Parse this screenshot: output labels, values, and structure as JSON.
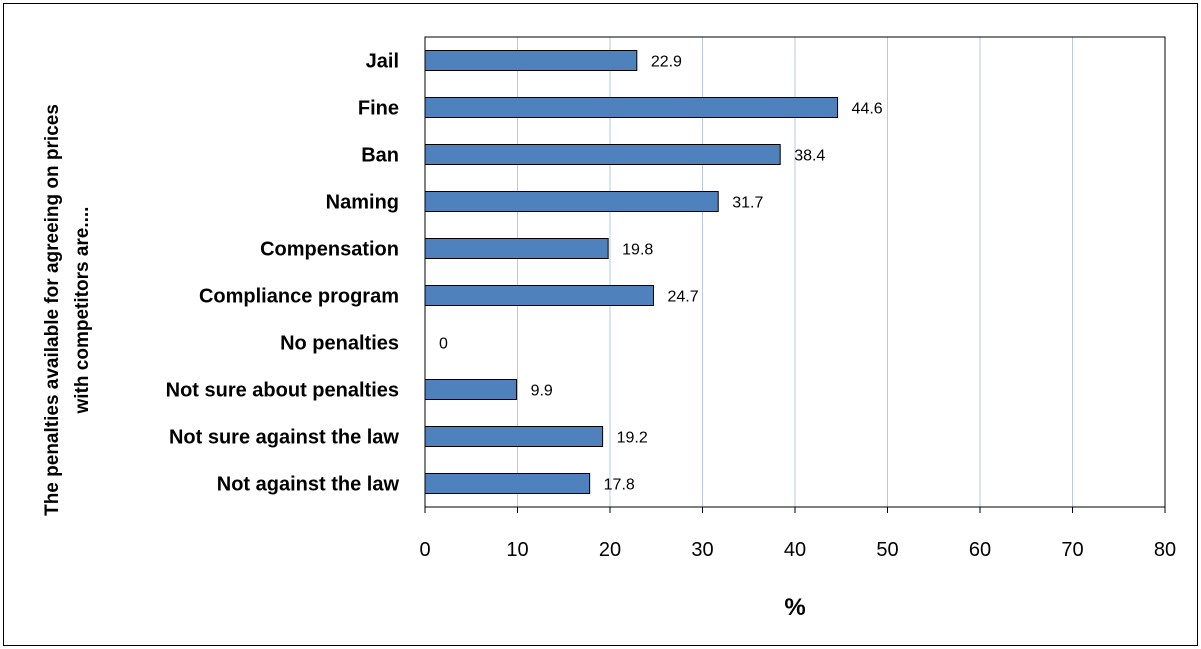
{
  "chart_data": {
    "type": "bar",
    "orientation": "horizontal",
    "categories": [
      "Jail",
      "Fine",
      "Ban",
      "Naming",
      "Compensation",
      "Compliance program",
      "No penalties",
      "Not sure about penalties",
      "Not sure against the law",
      "Not against the law"
    ],
    "values": [
      22.9,
      44.6,
      38.4,
      31.7,
      19.8,
      24.7,
      0,
      9.9,
      19.2,
      17.8
    ],
    "xlabel": "%",
    "ylabel_lines": [
      "The penalties available for agreeing on prices",
      "with competitors are...."
    ],
    "xlim": [
      0,
      80
    ],
    "xticks": [
      0,
      10,
      20,
      30,
      40,
      50,
      60,
      70,
      80
    ],
    "grid": "vertical",
    "bar_color": "#4f81bd",
    "bar_edge_color": "#000000",
    "grid_color": "#b9c9e0"
  }
}
